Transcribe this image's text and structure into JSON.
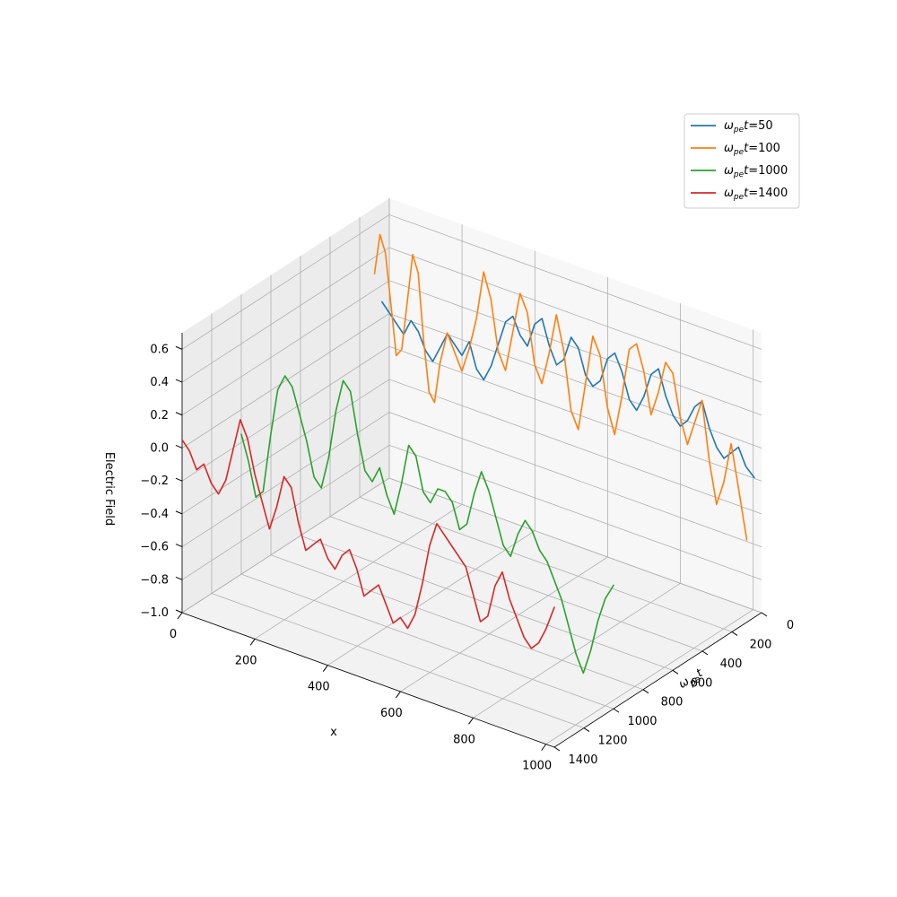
{
  "chart_data": {
    "type": "line",
    "projection": "3d",
    "xlabel": "x",
    "ylabel_parts": {
      "base": "ω",
      "sub": "pe",
      "tail": "t"
    },
    "zlabel": "Electric Field",
    "xlim": [
      0,
      1023
    ],
    "ylim": [
      0,
      1400
    ],
    "zlim": [
      -1.0,
      0.7
    ],
    "x_ticks": [
      0,
      200,
      400,
      600,
      800,
      1000
    ],
    "y_ticks": [
      0,
      200,
      400,
      600,
      800,
      1000,
      1200,
      1400
    ],
    "z_ticks": [
      -1.0,
      -0.8,
      -0.6,
      -0.4,
      -0.2,
      0.0,
      0.2,
      0.4,
      0.6
    ],
    "x_tick_labels": [
      "0",
      "200",
      "400",
      "600",
      "800",
      "1000"
    ],
    "y_tick_labels": [
      "0",
      "200",
      "400",
      "600",
      "800",
      "1000",
      "1200",
      "1400"
    ],
    "z_tick_labels": [
      "−1.0",
      "−0.8",
      "−0.6",
      "−0.4",
      "−0.2",
      "0.0",
      "0.2",
      "0.4",
      "0.6"
    ],
    "grid": true,
    "legend_position": "top-right",
    "series": [
      {
        "legend_value": "50",
        "color": "#1f77b4",
        "t": 50,
        "x": [
          0,
          20,
          40,
          60,
          80,
          100,
          120,
          140,
          160,
          180,
          200,
          220,
          240,
          260,
          280,
          300,
          320,
          340,
          360,
          380,
          400,
          420,
          440,
          460,
          480,
          500,
          520,
          540,
          560,
          580,
          600,
          620,
          640,
          660,
          680,
          700,
          720,
          740,
          760,
          780,
          800,
          820,
          840,
          860,
          880,
          900,
          920,
          940,
          960,
          980,
          1000,
          1023
        ],
        "y": [
          0.1,
          0.05,
          0.0,
          -0.05,
          0.05,
          0.0,
          -0.1,
          -0.15,
          -0.05,
          0.05,
          0.0,
          -0.05,
          0.05,
          -0.1,
          -0.15,
          -0.05,
          0.1,
          0.25,
          0.3,
          0.2,
          0.15,
          0.3,
          0.35,
          0.2,
          0.1,
          0.15,
          0.3,
          0.25,
          0.1,
          0.05,
          0.1,
          0.25,
          0.3,
          0.2,
          0.05,
          0.0,
          0.1,
          0.25,
          0.3,
          0.15,
          0.05,
          0.0,
          0.05,
          0.15,
          0.2,
          0.05,
          -0.05,
          -0.1,
          -0.05,
          0.0,
          -0.1,
          -0.15
        ]
      },
      {
        "legend_value": "100",
        "color": "#ff7f0e",
        "t": 100,
        "x": [
          0,
          15,
          30,
          45,
          60,
          75,
          90,
          105,
          120,
          135,
          150,
          165,
          180,
          200,
          220,
          240,
          260,
          280,
          300,
          320,
          340,
          360,
          380,
          400,
          420,
          440,
          460,
          480,
          500,
          520,
          540,
          560,
          580,
          600,
          620,
          640,
          660,
          680,
          700,
          720,
          740,
          760,
          780,
          800,
          820,
          840,
          860,
          880,
          900,
          920,
          940,
          960,
          980,
          1000,
          1023
        ],
        "y": [
          0.3,
          0.55,
          0.45,
          0.15,
          -0.15,
          -0.1,
          0.2,
          0.5,
          0.4,
          0.0,
          -0.3,
          -0.35,
          -0.1,
          0.1,
          0.0,
          -0.1,
          0.05,
          0.25,
          0.55,
          0.4,
          0.1,
          0.0,
          0.25,
          0.5,
          0.4,
          0.1,
          0.0,
          0.2,
          0.45,
          0.25,
          -0.1,
          -0.2,
          0.1,
          0.4,
          0.3,
          0.0,
          -0.15,
          0.1,
          0.4,
          0.45,
          0.3,
          0.05,
          0.2,
          0.4,
          0.35,
          0.1,
          -0.05,
          0.1,
          0.25,
          -0.1,
          -0.35,
          -0.2,
          0.05,
          -0.2,
          -0.5
        ]
      },
      {
        "legend_value": "1000",
        "color": "#2ca02c",
        "t": 1000,
        "x": [
          0,
          20,
          40,
          60,
          80,
          100,
          120,
          140,
          160,
          180,
          200,
          220,
          240,
          260,
          280,
          300,
          320,
          340,
          360,
          380,
          400,
          420,
          440,
          460,
          480,
          500,
          520,
          540,
          560,
          580,
          600,
          620,
          640,
          660,
          680,
          700,
          720,
          740,
          760,
          780,
          800,
          820,
          840,
          860,
          880,
          900,
          920,
          940,
          960,
          980,
          1000,
          1023
        ],
        "y": [
          -0.15,
          -0.3,
          -0.5,
          -0.45,
          -0.1,
          0.2,
          0.3,
          0.25,
          0.1,
          -0.05,
          -0.25,
          -0.3,
          -0.1,
          0.2,
          0.4,
          0.35,
          0.1,
          -0.1,
          -0.15,
          -0.05,
          -0.2,
          -0.3,
          -0.1,
          0.15,
          0.1,
          -0.1,
          -0.15,
          -0.05,
          -0.05,
          -0.1,
          -0.25,
          -0.2,
          0.0,
          0.15,
          0.05,
          -0.1,
          -0.25,
          -0.3,
          -0.15,
          -0.05,
          -0.1,
          -0.2,
          -0.25,
          -0.35,
          -0.45,
          -0.6,
          -0.75,
          -0.85,
          -0.7,
          -0.5,
          -0.35,
          -0.25
        ]
      },
      {
        "legend_value": "1400",
        "color": "#d62728",
        "t": 1400,
        "x": [
          0,
          20,
          40,
          60,
          80,
          100,
          120,
          140,
          160,
          180,
          200,
          220,
          240,
          260,
          280,
          300,
          320,
          340,
          360,
          380,
          400,
          420,
          440,
          460,
          480,
          500,
          520,
          540,
          560,
          580,
          600,
          620,
          640,
          660,
          680,
          700,
          720,
          740,
          760,
          780,
          800,
          820,
          840,
          860,
          880,
          900,
          920,
          940,
          960,
          980,
          1000,
          1023
        ],
        "y": [
          0.05,
          0.0,
          -0.1,
          -0.05,
          -0.15,
          -0.2,
          -0.1,
          0.1,
          0.3,
          0.2,
          0.0,
          -0.15,
          -0.3,
          -0.15,
          0.05,
          0.0,
          -0.2,
          -0.35,
          -0.3,
          -0.25,
          -0.35,
          -0.4,
          -0.3,
          -0.25,
          -0.35,
          -0.5,
          -0.45,
          -0.4,
          -0.5,
          -0.6,
          -0.55,
          -0.6,
          -0.5,
          -0.3,
          -0.05,
          0.1,
          0.05,
          0.0,
          -0.05,
          -0.1,
          -0.25,
          -0.4,
          -0.35,
          -0.15,
          -0.05,
          -0.2,
          -0.3,
          -0.4,
          -0.45,
          -0.4,
          -0.3,
          -0.15
        ]
      }
    ]
  }
}
